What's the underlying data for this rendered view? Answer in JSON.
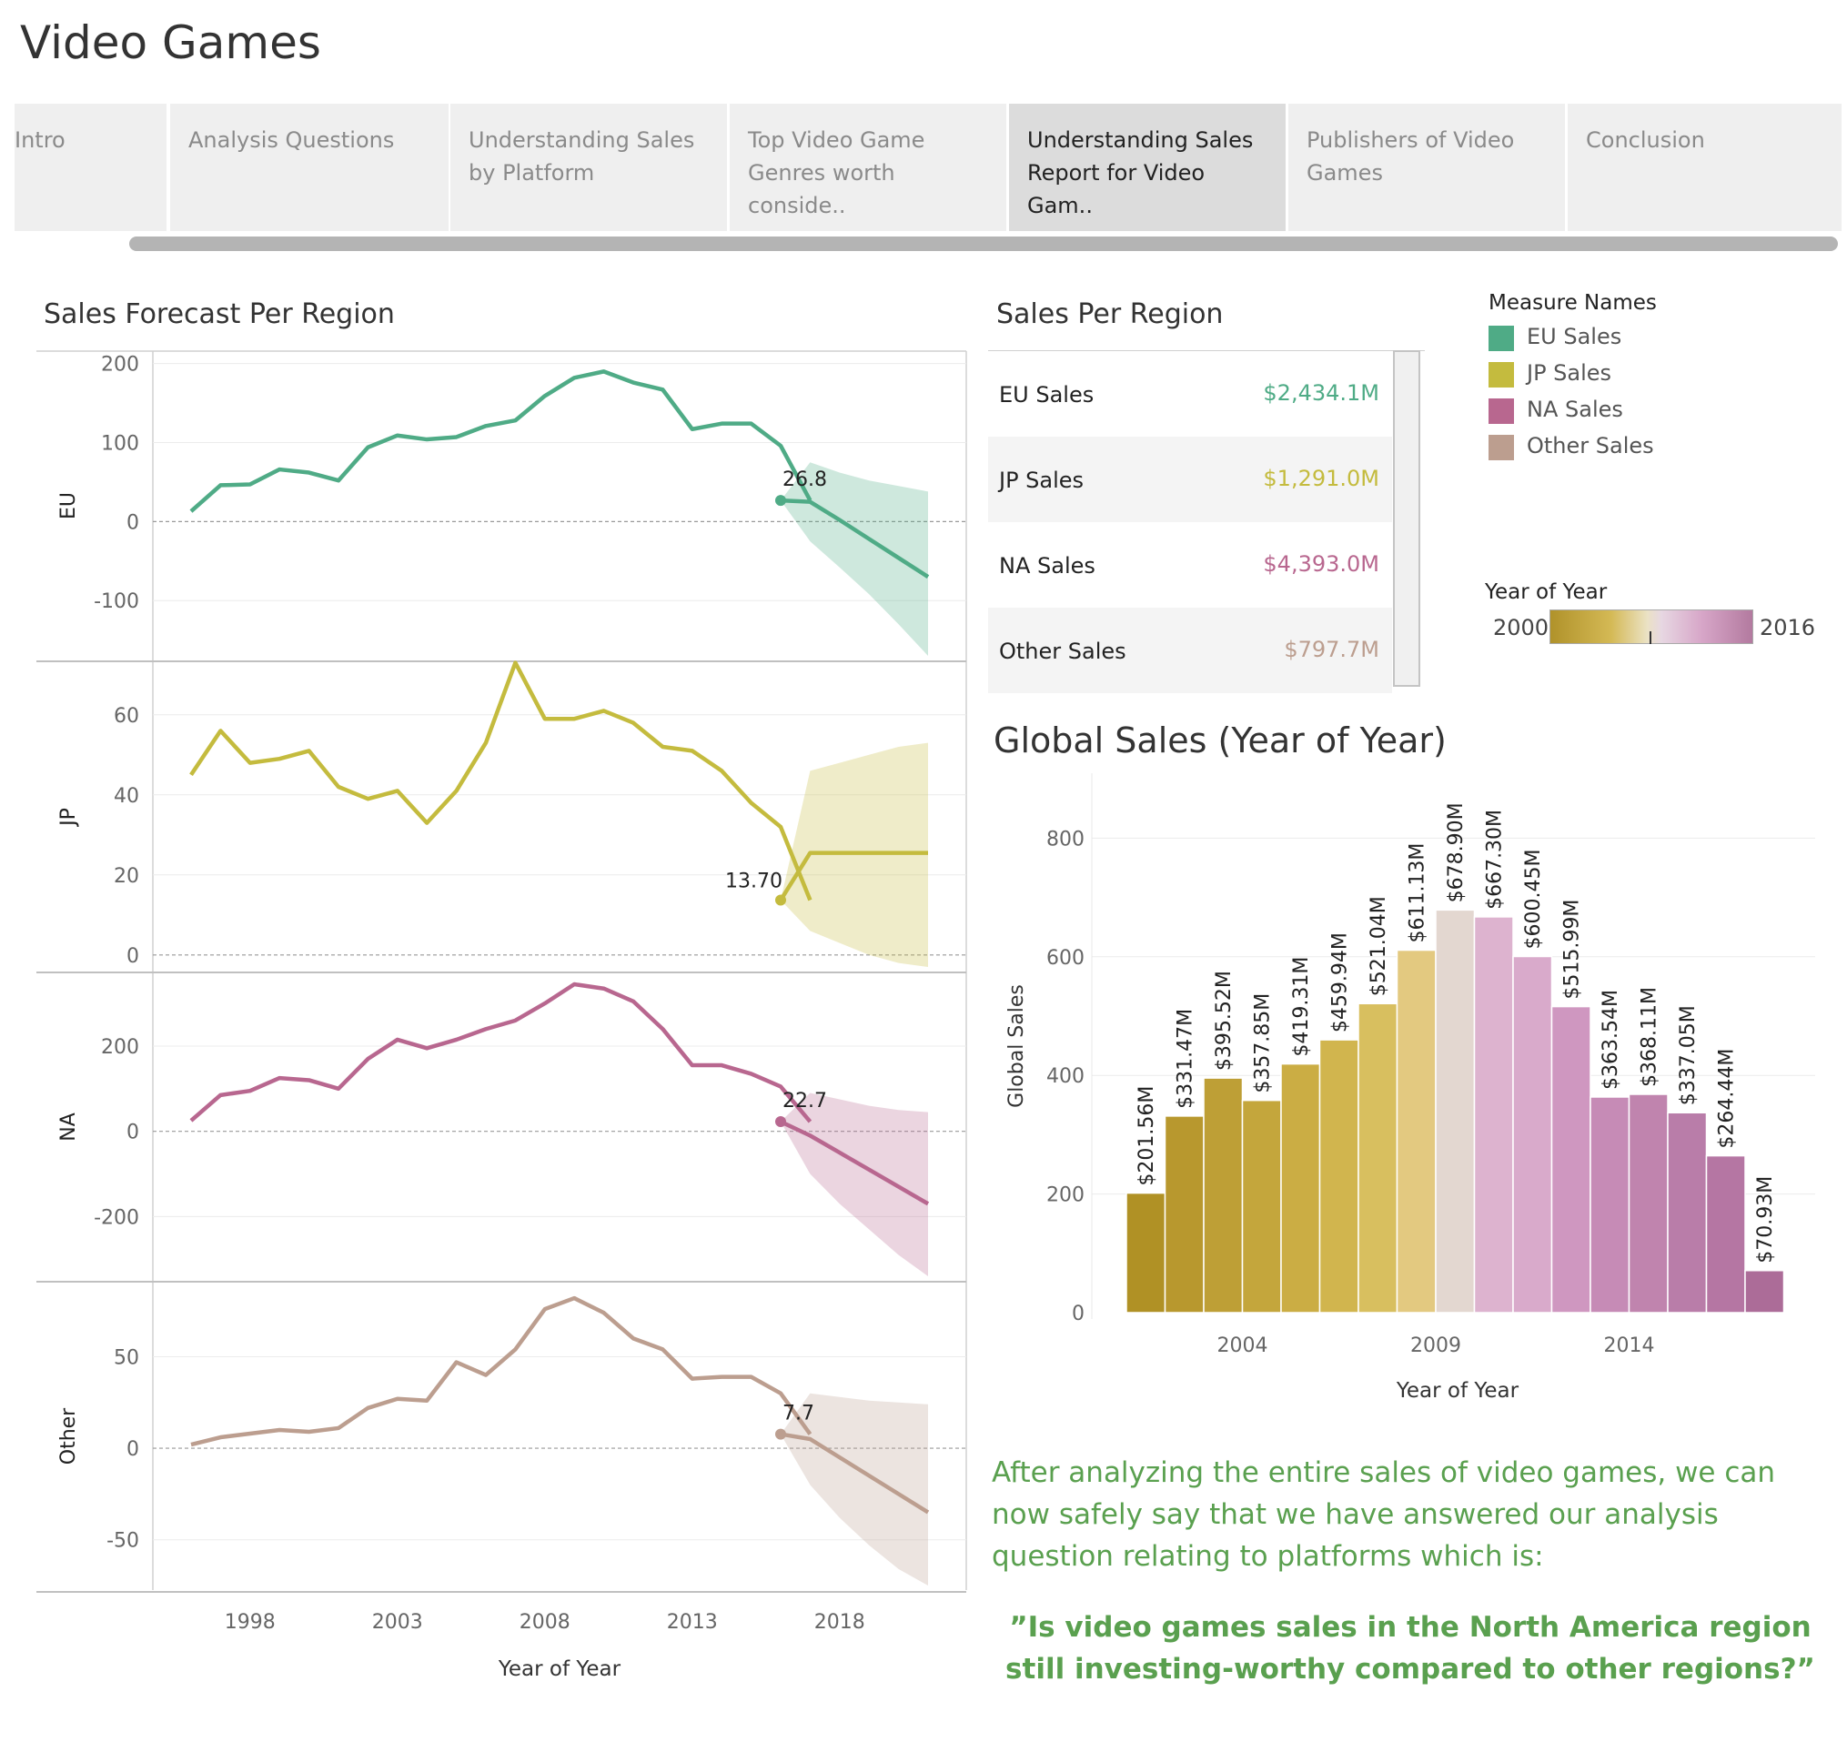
{
  "title": "Video Games",
  "tabs": [
    {
      "label": "Intro"
    },
    {
      "label": "Analysis Questions"
    },
    {
      "label": "Understanding Sales by Platform"
    },
    {
      "label": "Top Video Game Genres worth conside.."
    },
    {
      "label": "Understanding Sales Report for Video Gam.."
    },
    {
      "label": "Publishers of Video Games"
    },
    {
      "label": "Conclusion"
    }
  ],
  "forecast": {
    "title": "Sales Forecast Per Region",
    "xlabel": "Year of Year",
    "xticks": [
      "1998",
      "2003",
      "2008",
      "2013",
      "2018"
    ]
  },
  "sales_per_region": {
    "title": "Sales Per Region",
    "rows": [
      {
        "label": "EU Sales",
        "value": "$2,434.1M"
      },
      {
        "label": "JP Sales",
        "value": "$1,291.0M"
      },
      {
        "label": "NA Sales",
        "value": "$4,393.0M"
      },
      {
        "label": "Other Sales",
        "value": "$797.7M"
      }
    ]
  },
  "legend": {
    "title": "Measure Names",
    "items": [
      "EU Sales",
      "JP Sales",
      "NA Sales",
      "Other Sales"
    ],
    "year_title": "Year of Year",
    "year_min": "2000",
    "year_max": "2016"
  },
  "global": {
    "title": "Global Sales (Year of Year)",
    "ylabel": "Global Sales",
    "xlabel": "Year of Year"
  },
  "narrative": "After analyzing the entire sales of video games, we can now safely say that we have answered our analysis question relating to platforms which is:",
  "quote": "”Is video games sales in the North America region still investing-worthy compared to other regions?”",
  "colors": {
    "eu": "#4fab86",
    "jp": "#c4bb3e",
    "na": "#b8678f",
    "other": "#bc9e8f"
  },
  "chart_data": [
    {
      "type": "line",
      "title": "Sales Forecast Per Region",
      "xlabel": "Year of Year",
      "x": [
        1996,
        1997,
        1998,
        1999,
        2000,
        2001,
        2002,
        2003,
        2004,
        2005,
        2006,
        2007,
        2008,
        2009,
        2010,
        2011,
        2012,
        2013,
        2014,
        2015,
        2016,
        2017,
        2018,
        2019,
        2020,
        2021
      ],
      "forecast_start": 2016,
      "series": [
        {
          "name": "EU",
          "color": "#4fab86",
          "ylim": [
            -170,
            210
          ],
          "yticks": [
            200,
            100,
            0,
            -100
          ],
          "actual": [
            13,
            46,
            47,
            66,
            62,
            52,
            94,
            109,
            104,
            107,
            121,
            128,
            159,
            182,
            190,
            176,
            167,
            117,
            124,
            124,
            96,
            26.8
          ],
          "forecast": [
            26.8,
            25,
            2,
            -22,
            -46,
            -70
          ],
          "band_upper": [
            26.8,
            75,
            62,
            52,
            45,
            38
          ],
          "band_lower": [
            26.8,
            -25,
            -58,
            -92,
            -130,
            -170
          ],
          "label": "26.8"
        },
        {
          "name": "JP",
          "color": "#c4bb3e",
          "ylim": [
            -3,
            72
          ],
          "yticks": [
            60,
            40,
            20,
            0
          ],
          "actual": [
            45,
            56,
            48,
            49,
            51,
            42,
            39,
            41,
            33,
            41,
            53,
            73,
            59,
            59,
            61,
            58,
            52,
            51,
            46,
            38,
            32,
            13.7
          ],
          "forecast": [
            13.7,
            25.5,
            25.5,
            25.5,
            25.5,
            25.5
          ],
          "band_upper": [
            13.7,
            46,
            48,
            50,
            52,
            53
          ],
          "band_lower": [
            13.7,
            6,
            3,
            0,
            -2,
            -3
          ],
          "label": "13.70"
        },
        {
          "name": "NA",
          "color": "#b8678f",
          "ylim": [
            -340,
            360
          ],
          "yticks": [
            200,
            0,
            -200
          ],
          "actual": [
            25,
            85,
            95,
            125,
            120,
            100,
            170,
            215,
            195,
            215,
            240,
            260,
            300,
            345,
            335,
            305,
            240,
            155,
            155,
            135,
            105,
            22.7
          ],
          "forecast": [
            22.7,
            -10,
            -50,
            -90,
            -130,
            -170
          ],
          "band_upper": [
            22.7,
            90,
            75,
            60,
            50,
            45
          ],
          "band_lower": [
            22.7,
            -100,
            -170,
            -230,
            -290,
            -340
          ],
          "label": "22.7"
        },
        {
          "name": "Other",
          "color": "#bc9e8f",
          "ylim": [
            -75,
            88
          ],
          "yticks": [
            50,
            0,
            -50
          ],
          "actual": [
            2,
            6,
            8,
            10,
            9,
            11,
            22,
            27,
            26,
            47,
            40,
            54,
            76,
            82,
            74,
            60,
            54,
            38,
            39,
            39,
            30,
            7.7
          ],
          "forecast": [
            7.7,
            5,
            -5,
            -15,
            -25,
            -35
          ],
          "band_upper": [
            7.7,
            30,
            28,
            26,
            25,
            24
          ],
          "band_lower": [
            7.7,
            -20,
            -38,
            -53,
            -66,
            -75
          ],
          "label": "7.7"
        }
      ]
    },
    {
      "type": "bar",
      "title": "Global Sales (Year of Year)",
      "xlabel": "Year of Year",
      "ylabel": "Global Sales",
      "categories": [
        2001,
        2002,
        2003,
        2004,
        2005,
        2006,
        2007,
        2008,
        2009,
        2010,
        2011,
        2012,
        2013,
        2014,
        2015,
        2016,
        2017
      ],
      "values": [
        201.56,
        331.47,
        395.52,
        357.85,
        419.31,
        459.94,
        521.04,
        611.13,
        678.9,
        667.3,
        600.45,
        515.99,
        363.54,
        368.11,
        337.05,
        264.44,
        70.93
      ],
      "labels": [
        "$201.56M",
        "$331.47M",
        "$395.52M",
        "$357.85M",
        "$419.31M",
        "$459.94M",
        "$521.04M",
        "$611.13M",
        "$678.90M",
        "$667.30M",
        "$600.45M",
        "$515.99M",
        "$363.54M",
        "$368.11M",
        "$337.05M",
        "$264.44M",
        "$70.93M"
      ],
      "colors": [
        "#b09125",
        "#b8982e",
        "#be9f36",
        "#c4a63c",
        "#cbad44",
        "#d1b54e",
        "#d8bf5f",
        "#e3c980",
        "#e3d7d0",
        "#ddb3cf",
        "#d9aacb",
        "#cf97c0",
        "#c68bb6",
        "#c084ae",
        "#b97da9",
        "#b576a3",
        "#ac6c98"
      ],
      "ylim": [
        0,
        850
      ],
      "yticks": [
        0,
        200,
        400,
        600,
        800
      ],
      "xticks": [
        "2004",
        "2009",
        "2014"
      ]
    }
  ]
}
